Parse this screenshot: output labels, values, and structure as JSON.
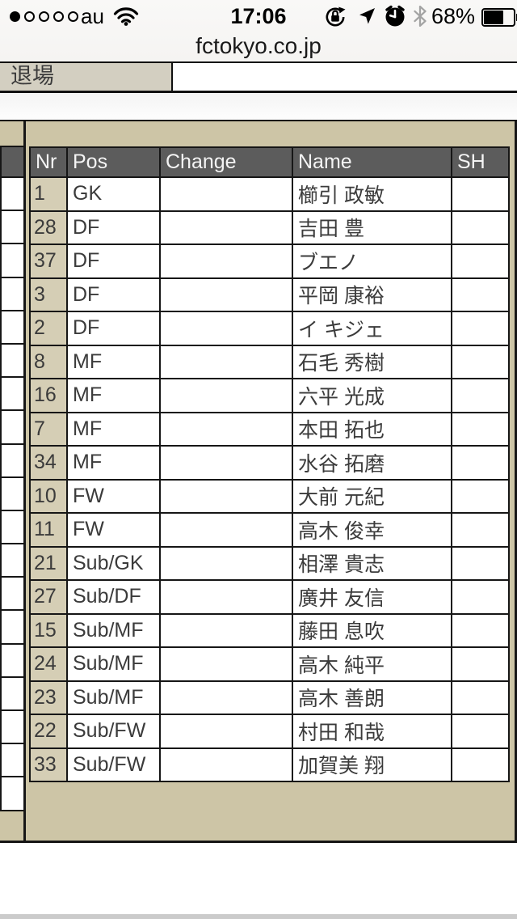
{
  "status_bar": {
    "carrier": "au",
    "time": "17:06",
    "battery_percent": "68%",
    "signal": {
      "filled_dots": 1,
      "total_dots": 5
    },
    "icons": [
      "signal-dots",
      "wifi",
      "orientation-lock",
      "location",
      "alarm",
      "bluetooth",
      "battery"
    ]
  },
  "url_bar": {
    "domain": "fctokyo.co.jp"
  },
  "page": {
    "dismissal_label": "退場"
  },
  "roster_table": {
    "headers": [
      "Nr",
      "Pos",
      "Change",
      "Name",
      "SH"
    ],
    "rows": [
      {
        "nr": "1",
        "pos": "GK",
        "change": "",
        "name": "櫛引 政敏",
        "sh": ""
      },
      {
        "nr": "28",
        "pos": "DF",
        "change": "",
        "name": "吉田 豊",
        "sh": ""
      },
      {
        "nr": "37",
        "pos": "DF",
        "change": "",
        "name": "ブエノ",
        "sh": ""
      },
      {
        "nr": "3",
        "pos": "DF",
        "change": "",
        "name": "平岡 康裕",
        "sh": ""
      },
      {
        "nr": "2",
        "pos": "DF",
        "change": "",
        "name": "イ キジェ",
        "sh": ""
      },
      {
        "nr": "8",
        "pos": "MF",
        "change": "",
        "name": "石毛 秀樹",
        "sh": ""
      },
      {
        "nr": "16",
        "pos": "MF",
        "change": "",
        "name": "六平 光成",
        "sh": ""
      },
      {
        "nr": "7",
        "pos": "MF",
        "change": "",
        "name": "本田 拓也",
        "sh": ""
      },
      {
        "nr": "34",
        "pos": "MF",
        "change": "",
        "name": "水谷 拓磨",
        "sh": ""
      },
      {
        "nr": "10",
        "pos": "FW",
        "change": "",
        "name": "大前 元紀",
        "sh": ""
      },
      {
        "nr": "11",
        "pos": "FW",
        "change": "",
        "name": "高木 俊幸",
        "sh": ""
      },
      {
        "nr": "21",
        "pos": "Sub/GK",
        "change": "",
        "name": "相澤 貴志",
        "sh": ""
      },
      {
        "nr": "27",
        "pos": "Sub/DF",
        "change": "",
        "name": "廣井 友信",
        "sh": ""
      },
      {
        "nr": "15",
        "pos": "Sub/MF",
        "change": "",
        "name": "藤田 息吹",
        "sh": ""
      },
      {
        "nr": "24",
        "pos": "Sub/MF",
        "change": "",
        "name": "高木 純平",
        "sh": ""
      },
      {
        "nr": "23",
        "pos": "Sub/MF",
        "change": "",
        "name": "高木 善朗",
        "sh": ""
      },
      {
        "nr": "22",
        "pos": "Sub/FW",
        "change": "",
        "name": "村田 和哉",
        "sh": ""
      },
      {
        "nr": "33",
        "pos": "Sub/FW",
        "change": "",
        "name": "加賀美 翔",
        "sh": ""
      }
    ]
  },
  "left_partial_table": {
    "visible_rows": 19
  },
  "colors": {
    "beige": "#cdc5a6",
    "cell_beige": "#d5ceb5",
    "label_beige": "#d3cfc1",
    "header_gray": "#5c5c5c",
    "border_black": "#161616",
    "chrome_gray": "#f5f4f2",
    "bottom_strip_gray": "#cbcbcb"
  }
}
